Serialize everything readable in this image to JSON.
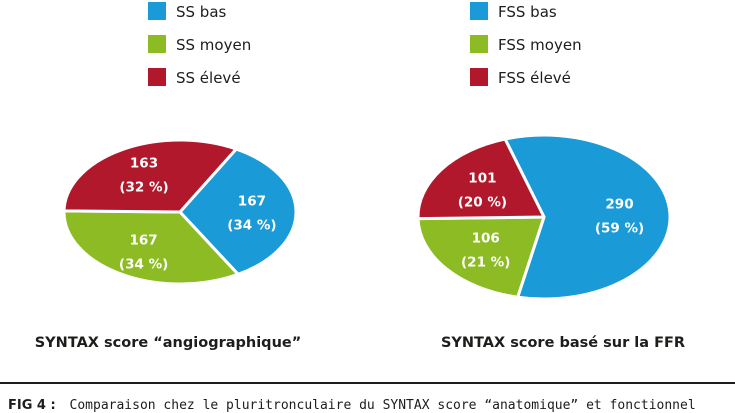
{
  "chart_data": [
    {
      "type": "pie",
      "title": "SYNTAX score “angiographique”",
      "legend_position": "top",
      "slices": [
        {
          "name": "SS bas",
          "value": 167,
          "percent_label": "(34 %)",
          "color": "#1a9ad6"
        },
        {
          "name": "SS moyen",
          "value": 167,
          "percent_label": "(34 %)",
          "color": "#8dbb24"
        },
        {
          "name": "SS élevé",
          "value": 163,
          "percent_label": "(32 %)",
          "color": "#b2182b"
        }
      ]
    },
    {
      "type": "pie",
      "title": "SYNTAX score basé sur la FFR",
      "legend_position": "top",
      "slices": [
        {
          "name": "FSS bas",
          "value": 290,
          "percent_label": "(59 %)",
          "color": "#1a9ad6"
        },
        {
          "name": "FSS moyen",
          "value": 106,
          "percent_label": "(21 %)",
          "color": "#8dbb24"
        },
        {
          "name": "FSS élevé",
          "value": 101,
          "percent_label": "(20 %)",
          "color": "#b2182b"
        }
      ]
    }
  ],
  "caption": {
    "figure_label": "FIG 4 :",
    "text": "Comparaison chez le pluritronculaire du SYNTAX score “anatomique” et fonctionnel"
  }
}
